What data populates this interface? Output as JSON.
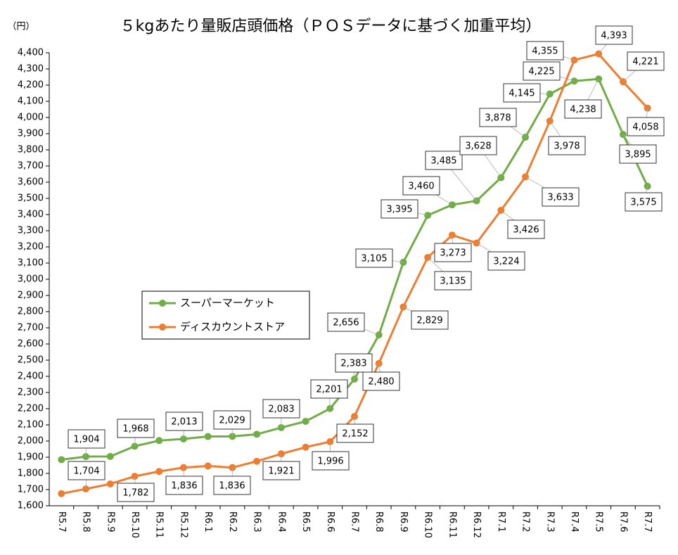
{
  "chart_data": {
    "type": "line",
    "title": "５kgあたり量販店頭価格（ＰＯＳデータに基づく加重平均）",
    "ylabel": "（円）",
    "categories": [
      "R5.7",
      "R5.8",
      "R5.9",
      "R5.10",
      "R5.11",
      "R5.12",
      "R6.1",
      "R6.2",
      "R6.3",
      "R6.4",
      "R6.5",
      "R6.6",
      "R6.7",
      "R6.8",
      "R6.9",
      "R6.10",
      "R6.11",
      "R6.12",
      "R7.1",
      "R7.2",
      "R7.3",
      "R7.4",
      "R7.5",
      "R7.6",
      "R7.7"
    ],
    "series": [
      {
        "name": "スーパーマーケット",
        "color": "#70ad47",
        "values": [
          1885,
          1904,
          1905,
          1968,
          2003,
          2013,
          2028,
          2029,
          2042,
          2083,
          2122,
          2201,
          2383,
          2656,
          3105,
          3395,
          3460,
          3485,
          3628,
          3878,
          4145,
          4225,
          4238,
          3895,
          3575
        ],
        "value_labels": [
          null,
          "1,904",
          null,
          "1,968",
          null,
          "2,013",
          null,
          "2,029",
          null,
          "2,083",
          null,
          "2,201",
          "2,383",
          "2,656",
          "3,105",
          "3,395",
          "3,460",
          "3,485",
          "3,628",
          "3,878",
          "4,145",
          "4,225",
          "4,238",
          "3,895",
          "3,575"
        ]
      },
      {
        "name": "ディスカウントストア",
        "color": "#ed7d31",
        "values": [
          1675,
          1704,
          1735,
          1782,
          1812,
          1836,
          1846,
          1836,
          1875,
          1921,
          1962,
          1996,
          2152,
          2480,
          2829,
          3135,
          3273,
          3224,
          3426,
          3633,
          3978,
          4355,
          4393,
          4221,
          4058
        ],
        "value_labels": [
          null,
          "1,704",
          null,
          "1,782",
          null,
          "1,836",
          null,
          "1,836",
          null,
          "1,921",
          null,
          "1,996",
          "2,152",
          "2,480",
          "2,829",
          "3,135",
          "3,273",
          "3,224",
          "3,426",
          "3,633",
          "3,978",
          "4,355",
          "4,393",
          "4,221",
          "4,058"
        ]
      }
    ],
    "ylim": [
      1600,
      4400
    ],
    "yticks": [
      {
        "value": 1600,
        "label": "1,600"
      },
      {
        "value": 1700,
        "label": "1,700"
      },
      {
        "value": 1800,
        "label": "1,800"
      },
      {
        "value": 1900,
        "label": "1,900"
      },
      {
        "value": 2000,
        "label": "2,000"
      },
      {
        "value": 2100,
        "label": "2,100"
      },
      {
        "value": 2200,
        "label": "2,200"
      },
      {
        "value": 2300,
        "label": "2,300"
      },
      {
        "value": 2400,
        "label": "2,400"
      },
      {
        "value": 2500,
        "label": "2,500"
      },
      {
        "value": 2600,
        "label": "2,600"
      },
      {
        "value": 2700,
        "label": "2,700"
      },
      {
        "value": 2800,
        "label": "2,800"
      },
      {
        "value": 2900,
        "label": "2,900"
      },
      {
        "value": 3000,
        "label": "3,000"
      },
      {
        "value": 3100,
        "label": "3,100"
      },
      {
        "value": 3200,
        "label": "3,200"
      },
      {
        "value": 3300,
        "label": "3,300"
      },
      {
        "value": 3400,
        "label": "3,400"
      },
      {
        "value": 3500,
        "label": "3,500"
      },
      {
        "value": 3600,
        "label": "3,600"
      },
      {
        "value": 3700,
        "label": "3,700"
      },
      {
        "value": 3800,
        "label": "3,800"
      },
      {
        "value": 3900,
        "label": "3,900"
      },
      {
        "value": 4000,
        "label": "4,000"
      },
      {
        "value": 4100,
        "label": "4,100"
      },
      {
        "value": 4200,
        "label": "4,200"
      },
      {
        "value": 4300,
        "label": "4,300"
      },
      {
        "value": 4400,
        "label": "4,400"
      }
    ],
    "grid": false,
    "legend": "center-left"
  }
}
